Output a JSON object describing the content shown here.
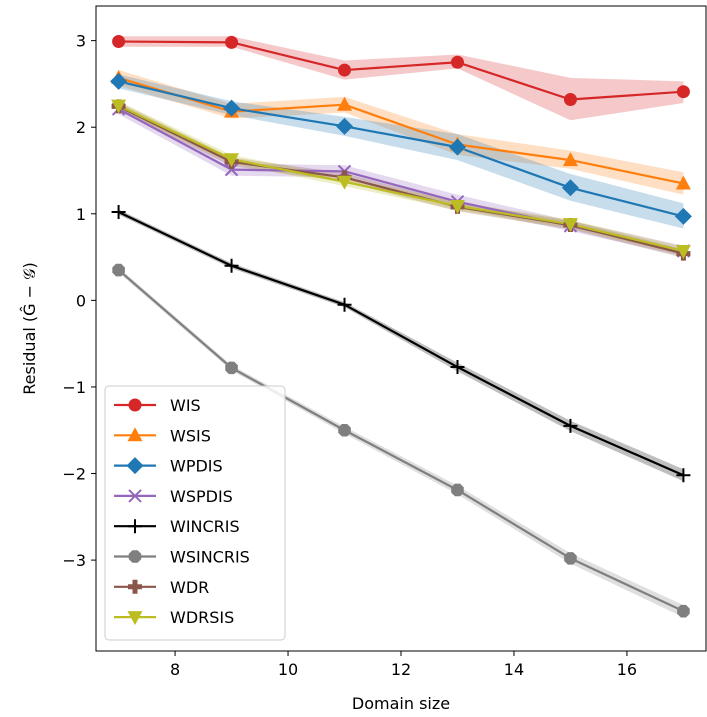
{
  "chart_data": {
    "type": "line",
    "xlabel": "Domain size",
    "ylabel": "Residual (Ĝ − 𝒢)",
    "xlim": [
      6.6,
      17.4
    ],
    "ylim": [
      -4.05,
      3.4
    ],
    "x_ticks": [
      8,
      10,
      12,
      14,
      16
    ],
    "x_tick_labels": [
      "8",
      "10",
      "12",
      "14",
      "16"
    ],
    "y_ticks": [
      -3,
      -2,
      -1,
      0,
      1,
      2,
      3
    ],
    "y_tick_labels": [
      "−3",
      "−2",
      "−1",
      "0",
      "1",
      "2",
      "3"
    ],
    "grid": false,
    "legend_position": "lower-left",
    "x": [
      7,
      9,
      11,
      13,
      15,
      17
    ],
    "series": [
      {
        "name": "WIS",
        "color": "#d62728",
        "marker": "circle",
        "values": [
          2.99,
          2.98,
          2.66,
          2.75,
          2.32,
          2.41
        ],
        "lower": [
          2.93,
          2.93,
          2.55,
          2.68,
          2.08,
          2.28
        ],
        "upper": [
          3.05,
          3.05,
          2.77,
          2.84,
          2.57,
          2.53
        ]
      },
      {
        "name": "WSIS",
        "color": "#ff7f0e",
        "marker": "triangle-up",
        "values": [
          2.57,
          2.18,
          2.26,
          1.8,
          1.62,
          1.35
        ],
        "lower": [
          2.48,
          2.1,
          2.17,
          1.68,
          1.52,
          1.22
        ],
        "upper": [
          2.66,
          2.27,
          2.35,
          1.92,
          1.73,
          1.48
        ]
      },
      {
        "name": "WPDIS",
        "color": "#1f77b4",
        "marker": "diamond",
        "values": [
          2.53,
          2.22,
          2.01,
          1.77,
          1.3,
          0.97
        ],
        "lower": [
          2.45,
          2.14,
          1.9,
          1.62,
          1.15,
          0.83
        ],
        "upper": [
          2.61,
          2.3,
          2.12,
          1.92,
          1.46,
          1.12
        ]
      },
      {
        "name": "WSPDIS",
        "color": "#9467bd",
        "marker": "x",
        "values": [
          2.21,
          1.51,
          1.49,
          1.14,
          0.86,
          0.57
        ],
        "lower": [
          2.15,
          1.44,
          1.42,
          1.07,
          0.8,
          0.51
        ],
        "upper": [
          2.27,
          1.58,
          1.56,
          1.22,
          0.92,
          0.63
        ]
      },
      {
        "name": "WINCRIS",
        "color": "#000000",
        "marker": "plus",
        "values": [
          1.02,
          0.4,
          -0.05,
          -0.77,
          -1.45,
          -2.02
        ],
        "lower": [
          0.99,
          0.37,
          -0.08,
          -0.82,
          -1.51,
          -2.09
        ],
        "upper": [
          1.05,
          0.43,
          -0.02,
          -0.72,
          -1.39,
          -1.95
        ]
      },
      {
        "name": "WSINCRIS",
        "color": "#7f7f7f",
        "marker": "octagon",
        "values": [
          0.35,
          -0.78,
          -1.5,
          -2.19,
          -2.98,
          -3.59
        ],
        "lower": [
          0.32,
          -0.81,
          -1.54,
          -2.24,
          -3.04,
          -3.66
        ],
        "upper": [
          0.38,
          -0.75,
          -1.46,
          -2.14,
          -2.92,
          -3.52
        ]
      },
      {
        "name": "WDR",
        "color": "#8c564b",
        "marker": "plus-filled",
        "values": [
          2.24,
          1.6,
          1.42,
          1.08,
          0.87,
          0.54
        ],
        "lower": [
          2.19,
          1.55,
          1.37,
          1.03,
          0.82,
          0.49
        ],
        "upper": [
          2.29,
          1.65,
          1.47,
          1.13,
          0.92,
          0.59
        ]
      },
      {
        "name": "WDRSIS",
        "color": "#bcbd22",
        "marker": "triangle-down",
        "values": [
          2.25,
          1.63,
          1.37,
          1.09,
          0.88,
          0.57
        ],
        "lower": [
          2.2,
          1.58,
          1.32,
          1.04,
          0.83,
          0.52
        ],
        "upper": [
          2.3,
          1.68,
          1.42,
          1.14,
          0.93,
          0.62
        ]
      }
    ]
  }
}
